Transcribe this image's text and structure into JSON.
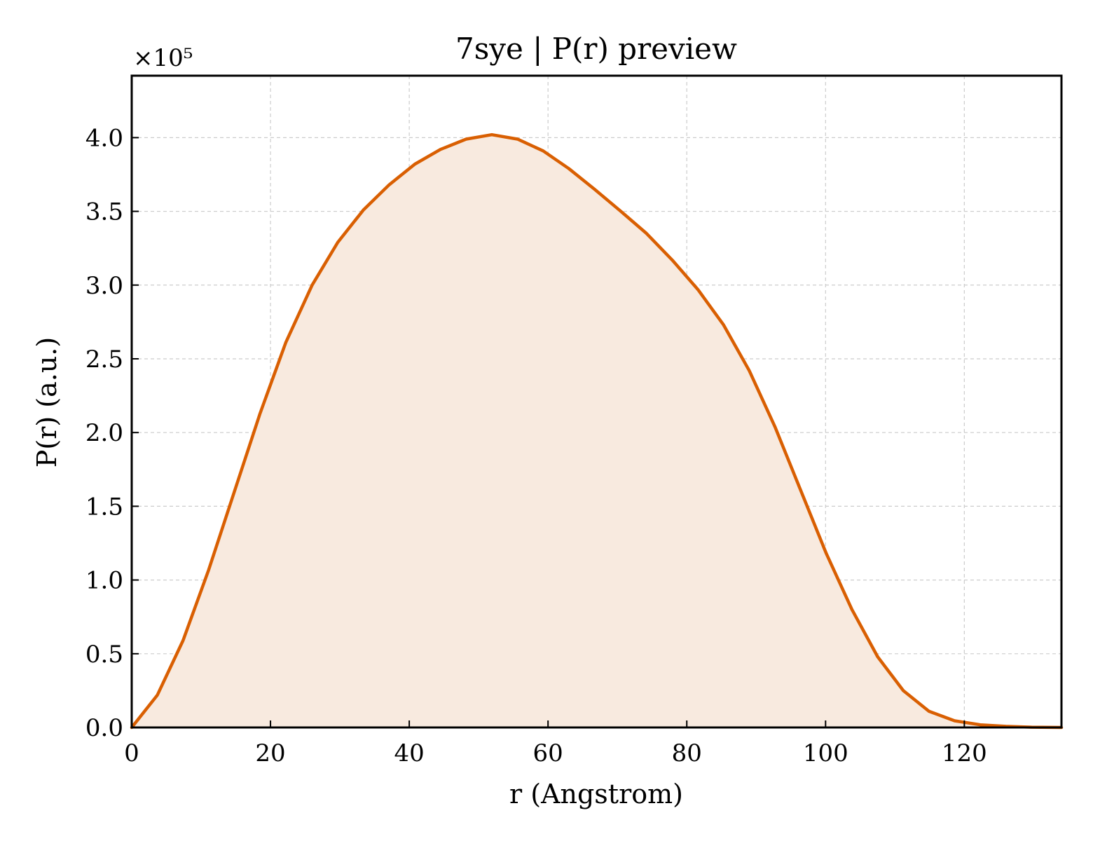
{
  "chart_data": {
    "type": "area",
    "title": "7sye | P(r) preview",
    "xlabel": "r (Angstrom)",
    "ylabel": "P(r) (a.u.)",
    "y_offset_label": "×10⁵",
    "y_scale": 100000,
    "xlim": [
      0,
      134
    ],
    "ylim": [
      0,
      4.42
    ],
    "xticks": [
      0,
      20,
      40,
      60,
      80,
      100,
      120
    ],
    "xtick_labels": [
      "0",
      "20",
      "40",
      "60",
      "80",
      "100",
      "120"
    ],
    "yticks": [
      0,
      0.5,
      1.0,
      1.5,
      2.0,
      2.5,
      3.0,
      3.5,
      4.0
    ],
    "ytick_labels": [
      "0.0",
      "0.5",
      "1.0",
      "1.5",
      "2.0",
      "2.5",
      "3.0",
      "3.5",
      "4.0"
    ],
    "grid": true,
    "line_color": "#d95f02",
    "fill_color": "#f8eadf",
    "series": [
      {
        "x": [
          0,
          3.7,
          7.4,
          11.1,
          14.8,
          18.5,
          22.2,
          26.0,
          29.7,
          33.4,
          37.1,
          40.8,
          44.5,
          48.2,
          51.9,
          55.6,
          59.3,
          63.0,
          66.7,
          70.5,
          74.2,
          77.9,
          81.6,
          85.3,
          89.0,
          92.7,
          96.4,
          100.1,
          103.8,
          107.5,
          111.2,
          114.9,
          118.6,
          122.3,
          126.0,
          129.7,
          134.0
        ],
        "y": [
          0.0,
          0.22,
          0.59,
          1.07,
          1.6,
          2.13,
          2.61,
          3.0,
          3.29,
          3.51,
          3.68,
          3.82,
          3.92,
          3.99,
          4.02,
          3.99,
          3.91,
          3.79,
          3.65,
          3.5,
          3.35,
          3.17,
          2.97,
          2.73,
          2.42,
          2.04,
          1.61,
          1.18,
          0.8,
          0.48,
          0.25,
          0.11,
          0.045,
          0.018,
          0.008,
          0.002,
          0.0
        ]
      }
    ]
  }
}
